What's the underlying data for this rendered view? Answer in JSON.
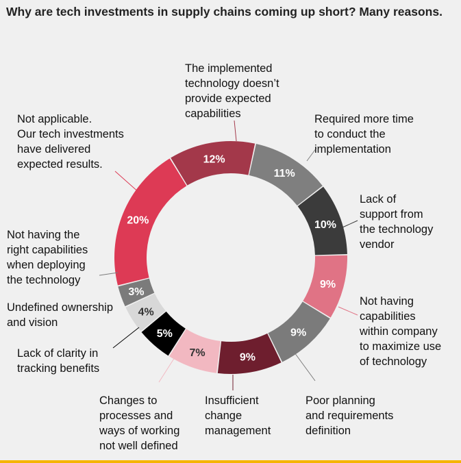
{
  "chart_data": {
    "type": "pie",
    "title": "Why are tech investments in supply chains coming up short? Many reasons.",
    "slices": [
      {
        "label": "The implemented\ntechnology doesn’t\nprovide expected\ncapabilities",
        "value": 12,
        "value_label": "12%",
        "color": "#a3384a",
        "text_color": "#ffffff"
      },
      {
        "label": "Required more time\nto conduct the\nimplementation",
        "value": 11,
        "value_label": "11%",
        "color": "#7f7f7f",
        "text_color": "#ffffff"
      },
      {
        "label": "Lack of\nsupport from\nthe technology\nvendor",
        "value": 10,
        "value_label": "10%",
        "color": "#3b3b3b",
        "text_color": "#ffffff"
      },
      {
        "label": "Not having\ncapabilities\nwithin company\nto maximize use\nof technology",
        "value": 9,
        "value_label": "9%",
        "color": "#e07385",
        "text_color": "#ffffff"
      },
      {
        "label": "Poor planning\nand requirements\ndefinition",
        "value": 9,
        "value_label": "9%",
        "color": "#7b7b7b",
        "text_color": "#ffffff"
      },
      {
        "label": "Insufficient\nchange\nmanagement",
        "value": 9,
        "value_label": "9%",
        "color": "#6e1e2e",
        "text_color": "#ffffff"
      },
      {
        "label": "Changes to\nprocesses and\nways of working\nnot well defined",
        "value": 7,
        "value_label": "7%",
        "color": "#f2b8c1",
        "text_color": "#333333"
      },
      {
        "label": "Lack of clarity in\ntracking benefits",
        "value": 5,
        "value_label": "5%",
        "color": "#000000",
        "text_color": "#ffffff"
      },
      {
        "label": "Undefined ownership\nand vision",
        "value": 4,
        "value_label": "4%",
        "color": "#d8d8d8",
        "text_color": "#333333"
      },
      {
        "label": "Not having the\nright capabilities\nwhen deploying\nthe technology",
        "value": 3,
        "value_label": "3%",
        "color": "#7b7b7b",
        "text_color": "#ffffff"
      },
      {
        "label": "Not applicable.\nOur tech investments\nhave delivered\nexpected results.",
        "value": 20,
        "value_label": "20%",
        "color": "#dd3a55",
        "text_color": "#ffffff"
      }
    ]
  }
}
